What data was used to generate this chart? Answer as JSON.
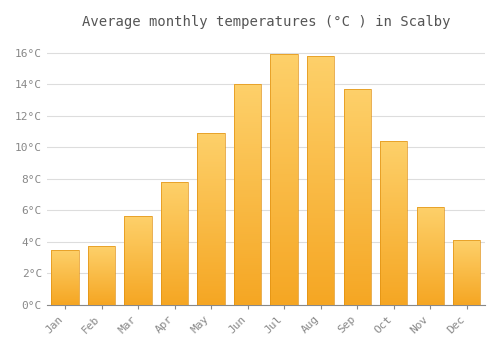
{
  "title": "Average monthly temperatures (°C ) in Scalby",
  "months": [
    "Jan",
    "Feb",
    "Mar",
    "Apr",
    "May",
    "Jun",
    "Jul",
    "Aug",
    "Sep",
    "Oct",
    "Nov",
    "Dec"
  ],
  "values": [
    3.5,
    3.7,
    5.6,
    7.8,
    10.9,
    14.0,
    15.9,
    15.8,
    13.7,
    10.4,
    6.2,
    4.1
  ],
  "ylim": [
    0,
    17
  ],
  "yticks": [
    0,
    2,
    4,
    6,
    8,
    10,
    12,
    14,
    16
  ],
  "ytick_labels": [
    "0°C",
    "2°C",
    "4°C",
    "6°C",
    "8°C",
    "10°C",
    "12°C",
    "14°C",
    "16°C"
  ],
  "background_color": "#FFFFFF",
  "plot_bg_color": "#FFFFFF",
  "grid_color": "#DDDDDD",
  "title_fontsize": 10,
  "tick_fontsize": 8,
  "bar_color_bottom": "#F5A623",
  "bar_color_top": "#FDD06A",
  "bar_edge_color": "#E09010"
}
